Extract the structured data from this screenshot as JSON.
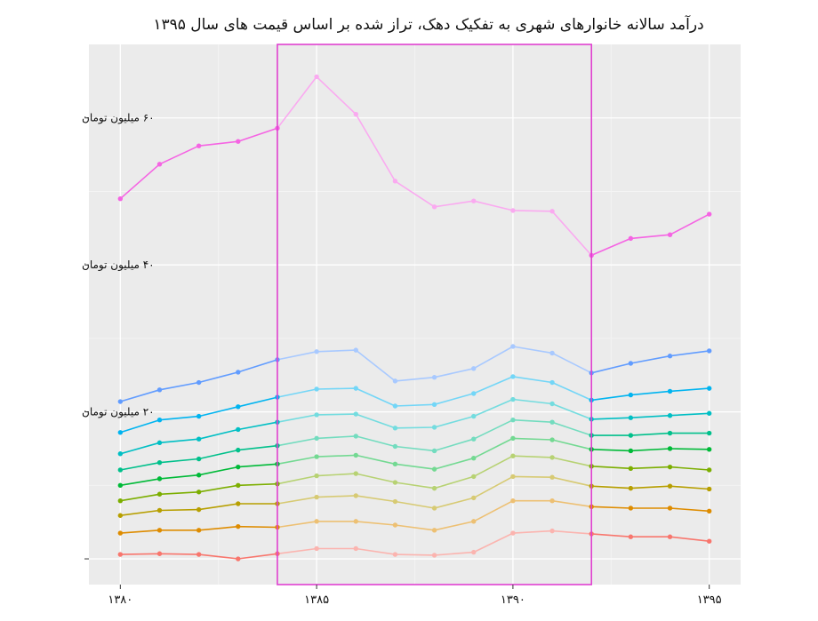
{
  "chart_data": {
    "type": "line",
    "title": "درآمد سالانه خانوارهای شهری به تفکیک دهک، تراز شده بر اساس قیمت های سال ۱۳۹۵",
    "xlabel": "",
    "ylabel": "",
    "x": [
      1380,
      1381,
      1382,
      1383,
      1384,
      1385,
      1386,
      1387,
      1388,
      1389,
      1390,
      1391,
      1392,
      1393,
      1394,
      1395
    ],
    "x_ticks": [
      1380,
      1385,
      1390,
      1395
    ],
    "x_tick_labels": [
      "۱۳۸۰",
      "۱۳۸۵",
      "۱۳۹۰",
      "۱۳۹۵"
    ],
    "y_ticks": [
      0,
      20,
      40,
      60
    ],
    "y_tick_labels": [
      "",
      "۲۰ میلیون تومان",
      "۴۰ میلیون تومان",
      "۶۰ میلیون تومان"
    ],
    "xlim": [
      1379.2,
      1395.8
    ],
    "ylim": [
      -3.5,
      70
    ],
    "grid": true,
    "highlight": {
      "x_start": 1384,
      "x_end": 1392,
      "color": "#e040d0"
    },
    "series": [
      {
        "color": "#F8766D",
        "values": [
          0.6,
          0.7,
          0.6,
          0.0,
          0.7,
          1.4,
          1.4,
          0.6,
          0.5,
          0.9,
          3.5,
          3.8,
          3.4,
          3.0,
          3.0,
          2.4
        ]
      },
      {
        "color": "#DE8C00",
        "values": [
          3.5,
          3.9,
          3.9,
          4.4,
          4.3,
          5.1,
          5.1,
          4.6,
          3.9,
          5.1,
          7.9,
          7.9,
          7.1,
          6.9,
          6.9,
          6.5
        ]
      },
      {
        "color": "#B79F00",
        "values": [
          5.9,
          6.6,
          6.7,
          7.5,
          7.5,
          8.4,
          8.6,
          7.8,
          6.9,
          8.3,
          11.2,
          11.1,
          9.9,
          9.6,
          9.9,
          9.5
        ]
      },
      {
        "color": "#7CAE00",
        "values": [
          7.9,
          8.8,
          9.1,
          10.0,
          10.2,
          11.3,
          11.6,
          10.4,
          9.6,
          11.2,
          14.0,
          13.8,
          12.6,
          12.3,
          12.5,
          12.1
        ]
      },
      {
        "color": "#00BA38",
        "values": [
          10.0,
          10.9,
          11.4,
          12.5,
          12.9,
          13.9,
          14.1,
          12.9,
          12.2,
          13.7,
          16.4,
          16.2,
          14.9,
          14.7,
          15.0,
          14.9
        ]
      },
      {
        "color": "#00C08B",
        "values": [
          12.1,
          13.1,
          13.6,
          14.8,
          15.4,
          16.4,
          16.7,
          15.3,
          14.7,
          16.3,
          18.9,
          18.6,
          16.8,
          16.8,
          17.1,
          17.1
        ]
      },
      {
        "color": "#00BFC4",
        "values": [
          14.3,
          15.8,
          16.3,
          17.6,
          18.6,
          19.6,
          19.7,
          17.8,
          17.9,
          19.4,
          21.7,
          21.1,
          19.0,
          19.2,
          19.5,
          19.8
        ]
      },
      {
        "color": "#00B4F0",
        "values": [
          17.2,
          18.9,
          19.4,
          20.7,
          22.0,
          23.1,
          23.2,
          20.8,
          21.0,
          22.5,
          24.8,
          24.0,
          21.6,
          22.3,
          22.8,
          23.2
        ]
      },
      {
        "color": "#619CFF",
        "values": [
          21.4,
          23.0,
          24.0,
          25.4,
          27.1,
          28.2,
          28.4,
          24.2,
          24.7,
          25.9,
          28.9,
          28.0,
          25.3,
          26.6,
          27.6,
          28.3
        ]
      },
      {
        "color": "#F564E3",
        "values": [
          49.0,
          53.7,
          56.2,
          56.8,
          58.6,
          65.6,
          60.5,
          51.4,
          47.9,
          48.7,
          47.4,
          47.3,
          41.3,
          43.6,
          44.1,
          46.9
        ]
      }
    ]
  }
}
